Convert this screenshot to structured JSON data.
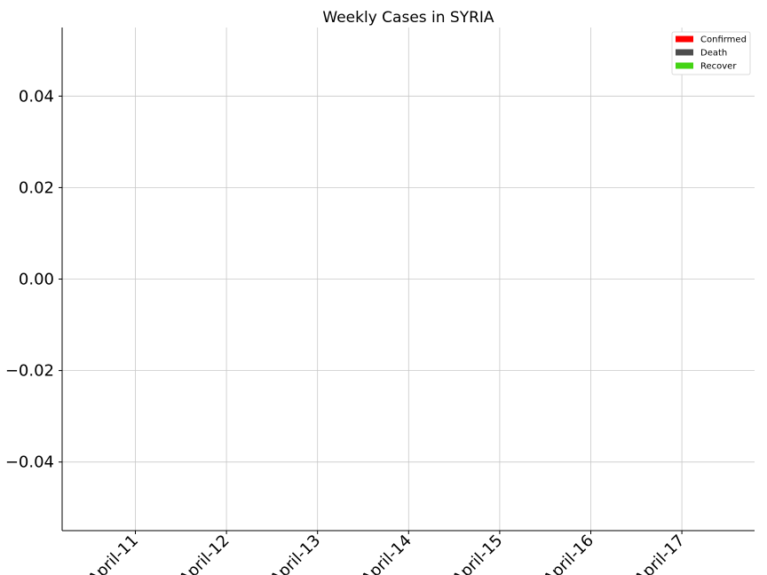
{
  "chart_data": {
    "type": "bar",
    "title": "Weekly Cases in SYRIA",
    "xlabel": "",
    "ylabel": "",
    "categories": [
      "April-11",
      "April-12",
      "April-13",
      "April-14",
      "April-15",
      "April-16",
      "April-17"
    ],
    "series": [
      {
        "name": "Confirmed",
        "color": "#ff0000",
        "values": [
          0,
          0,
          0,
          0,
          0,
          0,
          0
        ]
      },
      {
        "name": "Death",
        "color": "#4d4d4d",
        "values": [
          0,
          0,
          0,
          0,
          0,
          0,
          0
        ]
      },
      {
        "name": "Recover",
        "color": "#44d414",
        "values": [
          0,
          0,
          0,
          0,
          0,
          0,
          0
        ]
      }
    ],
    "ylim": [
      -0.055,
      0.055
    ],
    "yticks": [
      0.04,
      0.02,
      0.0,
      -0.02,
      -0.04
    ],
    "ytick_labels": [
      "0.04",
      "0.02",
      "0.00",
      "−0.02",
      "−0.04"
    ],
    "grid": true,
    "legend_position": "top-right"
  }
}
